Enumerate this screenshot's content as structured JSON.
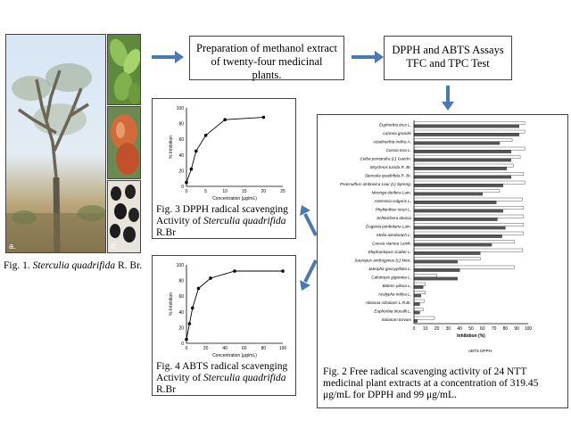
{
  "figure1": {
    "panel_a_label": "a.",
    "panel_d_label": "d.",
    "caption_prefix": "Fig. 1. ",
    "caption_species": "Sterculia quadrifida",
    "caption_suffix": " R. Br."
  },
  "steps": {
    "extract": "Preparation of methanol extract of twenty-four medicinal plants.",
    "assays_line1": "DPPH and ABTS Assays",
    "assays_line2": "TFC and TPC Test"
  },
  "figure3": {
    "caption_line1": "Fig. 3  DPPH radical scavenging",
    "caption_line2_prefix": "Activity of ",
    "caption_species": "Sterculia quadrifida",
    "caption_line2_suffix": " R.Br"
  },
  "figure4": {
    "caption_line1": "Fig. 4  ABTS radical scavenging",
    "caption_line2_prefix": "Activity of ",
    "caption_species": "Sterculia quadrifida",
    "caption_line2_suffix": " R.Br"
  },
  "figure2": {
    "caption": "Fig. 2  Free radical scavenging activity of 24 NTT medicinal plant extracts at a concentration of 319.45 μg/mL for DPPH and 99 μg/mL."
  },
  "chart_data": [
    {
      "type": "line",
      "id": "dpph-curve",
      "xlabel": "Concentration (μg/mL)",
      "ylabel": "% Inhibition",
      "xlim": [
        0,
        25
      ],
      "ylim": [
        0,
        100
      ],
      "xticks": [
        0,
        5,
        10,
        15,
        20,
        25
      ],
      "yticks": [
        0,
        20,
        40,
        60,
        80,
        100
      ],
      "x": [
        0,
        1.25,
        2.5,
        5,
        10,
        20
      ],
      "y": [
        5,
        22,
        45,
        65,
        85,
        88
      ]
    },
    {
      "type": "line",
      "id": "abts-curve",
      "xlabel": "Concentration (μg/mL)",
      "ylabel": "% Inhibition",
      "xlim": [
        0,
        100
      ],
      "ylim": [
        0,
        100
      ],
      "xticks": [
        0,
        20,
        40,
        60,
        80,
        100
      ],
      "yticks": [
        0,
        20,
        40,
        60,
        80,
        100
      ],
      "x": [
        0,
        3.125,
        6.25,
        12.5,
        25,
        50,
        100
      ],
      "y": [
        5,
        25,
        45,
        70,
        83,
        92,
        92
      ]
    },
    {
      "type": "bar",
      "id": "inhibition-bars",
      "orientation": "horizontal",
      "xlabel": "Inhibition (%)",
      "xlim": [
        0,
        100
      ],
      "xticks": [
        0,
        10,
        20,
        30,
        40,
        50,
        60,
        70,
        80,
        90,
        100
      ],
      "legend": "ABTS  DPPH",
      "categories": [
        "Euphorbia tirus L.",
        "Lannea grandis",
        "Azadirachta indica A.",
        "Cassia tora L.",
        "Ceiba pentandra (L) Gaertn.",
        "Strychnos lucida R. Br.",
        "Sterculia quadrifida R. Br.",
        "Psacnuthus ambonica Lour (L) Spreng.",
        "Moringa oleifera Lam.",
        "Artemisia vulgaris L.",
        "Phyllanthus niruri L.",
        "Schleichera oleosa",
        "Eugenia jambolana Lam.",
        "Melia azedarach L.",
        "Cassia siamea Lamk.",
        "Elephantopus scaber L.",
        "Sauropus androgynus (L) Merr.",
        "Jatropha gossypifolia L.",
        "Calotropis gigantea L.",
        "Bidens pilosa L.",
        "Acalypha indica L.",
        "Alstonia scholaris L.R.Br.",
        "Euphorbia tirucalli L.",
        "Solanum torvum"
      ],
      "series": [
        {
          "name": "ABTS",
          "values": [
            97,
            97,
            86,
            97,
            93,
            87,
            96,
            97,
            75,
            95,
            96,
            96,
            96,
            96,
            88,
            95,
            58,
            88,
            20,
            10,
            10,
            9,
            8,
            18
          ]
        },
        {
          "name": "DPPH",
          "values": [
            92,
            92,
            75,
            85,
            85,
            81,
            85,
            78,
            60,
            72,
            78,
            73,
            80,
            77,
            68,
            58,
            38,
            40,
            38,
            8,
            6,
            5,
            5,
            3
          ]
        }
      ]
    }
  ]
}
